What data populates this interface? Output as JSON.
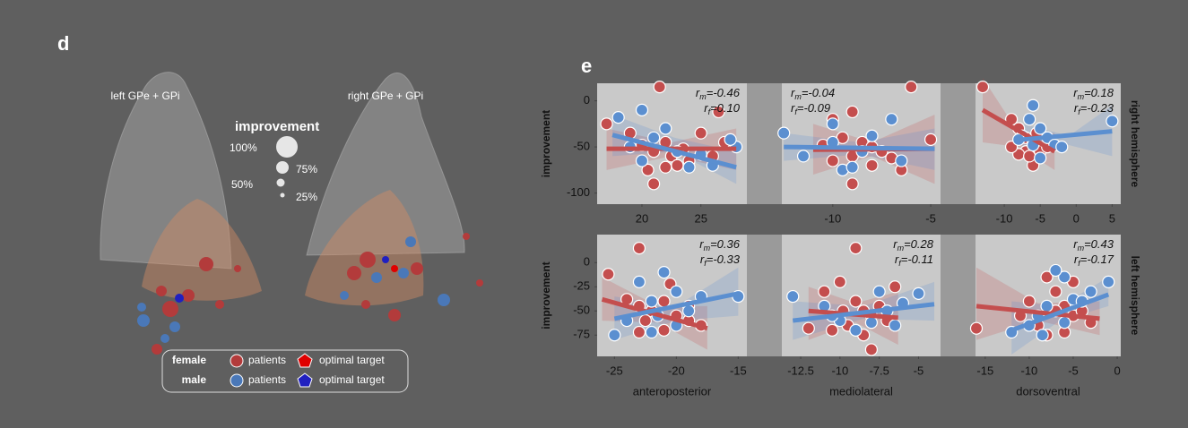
{
  "panel_d": {
    "letter": "d",
    "left_title": "left GPe + GPi",
    "right_title": "right GPe + GPi",
    "size_legend": {
      "title": "improvement",
      "labels": [
        "100%",
        "75%",
        "50%",
        "25%"
      ]
    },
    "legend": {
      "female": "female",
      "male": "male",
      "patients": [
        "patients",
        "patients"
      ],
      "target": [
        "optimal target",
        "optimal target"
      ]
    }
  },
  "panel_e": {
    "letter": "e"
  },
  "chart_data": [
    {
      "type": "scatter",
      "ylabel": "improvement",
      "xlim": [
        16.2,
        28.9
      ],
      "xticks": [
        20,
        25
      ],
      "ylim": [
        -112,
        19
      ],
      "yticks": [
        0,
        -50,
        -100
      ],
      "annotations": [
        {
          "symbol": "r",
          "sub": "m",
          "text": "=-0.46"
        },
        {
          "symbol": "r",
          "sub": "f",
          "text": "=0.10"
        }
      ],
      "series": [
        {
          "color": "#c44e4e",
          "x": [
            21.5,
            17,
            19,
            20,
            21,
            22,
            22.5,
            23,
            21,
            24,
            25,
            26,
            27,
            26.5,
            20.5,
            23.5,
            22
          ],
          "values": [
            15,
            -25,
            -35,
            -48,
            -55,
            -45,
            -60,
            -70,
            -90,
            -65,
            -35,
            -60,
            -45,
            -12,
            -75,
            -52,
            -72
          ],
          "fit": {
            "x": [
              17,
              28
            ],
            "y": [
              -52,
              -52
            ]
          },
          "band": {
            "x": [
              17,
              22.5,
              28
            ],
            "lower": [
              -75,
              -60,
              -75
            ],
            "upper": [
              -30,
              -45,
              -30
            ]
          }
        },
        {
          "color": "#5b8fd0",
          "x": [
            18,
            19,
            20,
            21,
            22,
            23,
            24,
            25,
            26,
            28,
            20,
            27.5
          ],
          "values": [
            -18,
            -50,
            -65,
            -40,
            -30,
            -55,
            -72,
            -58,
            -70,
            -50,
            -10,
            -42
          ],
          "fit": {
            "x": [
              17.5,
              28
            ],
            "y": [
              -37,
              -72
            ]
          },
          "band": {
            "x": [
              17.5,
              22.75,
              28
            ],
            "lower": [
              -60,
              -55,
              -90
            ],
            "upper": [
              -15,
              -40,
              -55
            ]
          }
        }
      ]
    },
    {
      "type": "scatter",
      "xlim": [
        -12.6,
        -4.5
      ],
      "xticks": [
        -10,
        -5
      ],
      "ylim": [
        -112,
        19
      ],
      "annotations": [
        {
          "symbol": "r",
          "sub": "m",
          "text": "=-0.04"
        },
        {
          "symbol": "r",
          "sub": "f",
          "text": "=-0.09"
        }
      ],
      "series": [
        {
          "color": "#c44e4e",
          "x": [
            -9,
            -10,
            -9.5,
            -8.5,
            -8,
            -9,
            -10,
            -8,
            -7.5,
            -7,
            -9,
            -6,
            -5,
            -6.5,
            -10.5
          ],
          "values": [
            -12,
            -20,
            -40,
            -45,
            -50,
            -60,
            -65,
            -70,
            -55,
            -62,
            -90,
            15,
            -42,
            -75,
            -48
          ],
          "fit": {
            "x": [
              -11,
              -4.8
            ],
            "y": [
              -53,
              -52
            ]
          },
          "band": {
            "x": [
              -11,
              -8,
              -4.8
            ],
            "lower": [
              -80,
              -60,
              -90
            ],
            "upper": [
              -25,
              -45,
              -15
            ]
          }
        },
        {
          "color": "#5b8fd0",
          "x": [
            -12.5,
            -11.5,
            -10,
            -9.5,
            -8,
            -7,
            -6.5,
            -8.5,
            -10,
            -9
          ],
          "values": [
            -35,
            -60,
            -45,
            -75,
            -38,
            -20,
            -65,
            -55,
            -25,
            -72
          ],
          "fit": {
            "x": [
              -12.5,
              -4.8
            ],
            "y": [
              -50,
              -52
            ]
          },
          "band": {
            "x": [
              -12.5,
              -8.6,
              -4.8
            ],
            "lower": [
              -65,
              -58,
              -75
            ],
            "upper": [
              -35,
              -45,
              -30
            ]
          }
        }
      ]
    },
    {
      "type": "scatter",
      "side_label": "right hemisphere",
      "xlim": [
        -14,
        6.2
      ],
      "xticks": [
        -10,
        -5,
        0,
        5
      ],
      "ylim": [
        -112,
        19
      ],
      "annotations": [
        {
          "symbol": "r",
          "sub": "m",
          "text": "=0.18"
        },
        {
          "symbol": "r",
          "sub": "f",
          "text": "=-0.23"
        }
      ],
      "series": [
        {
          "color": "#c44e4e",
          "x": [
            -13,
            -9,
            -8,
            -7,
            -6,
            -5,
            -7,
            -8,
            -6,
            -4,
            -5.5,
            -9,
            -6.5
          ],
          "values": [
            15,
            -20,
            -30,
            -40,
            -45,
            -55,
            -55,
            -58,
            -70,
            -50,
            -35,
            -50,
            -60
          ],
          "fit": {
            "x": [
              -13,
              -3
            ],
            "y": [
              -10,
              -55
            ]
          },
          "band": {
            "x": [
              -13,
              -8,
              -3
            ],
            "lower": [
              -45,
              -50,
              -75
            ],
            "upper": [
              25,
              -35,
              -35
            ]
          }
        },
        {
          "color": "#5b8fd0",
          "x": [
            -6,
            -6.5,
            -5,
            -7.5,
            -4,
            -3,
            -2,
            -6,
            5,
            -5,
            -8
          ],
          "values": [
            -5,
            -20,
            -30,
            -38,
            -40,
            -48,
            -50,
            -48,
            -22,
            -62,
            -42
          ],
          "fit": {
            "x": [
              -7.5,
              5
            ],
            "y": [
              -42,
              -33
            ]
          },
          "band": {
            "x": [
              -7.5,
              -1,
              5
            ],
            "lower": [
              -60,
              -48,
              -60
            ],
            "upper": [
              -25,
              -38,
              -5
            ]
          }
        }
      ]
    },
    {
      "type": "scatter",
      "ylabel": "improvement",
      "xlabel": "anteroposterior",
      "xlim": [
        -26.4,
        -14.3
      ],
      "xticks": [
        -25,
        -20,
        -15
      ],
      "ylim": [
        -97,
        29
      ],
      "yticks": [
        0,
        -25,
        -50,
        -75
      ],
      "annotations": [
        {
          "symbol": "r",
          "sub": "m",
          "text": "=0.36"
        },
        {
          "symbol": "r",
          "sub": "f",
          "text": "=-0.33"
        }
      ],
      "series": [
        {
          "color": "#c44e4e",
          "x": [
            -23,
            -25.5,
            -24,
            -23,
            -22,
            -21,
            -20,
            -19,
            -21,
            -23,
            -18,
            -20.5,
            -19,
            -22.5
          ],
          "values": [
            15,
            -12,
            -38,
            -45,
            -50,
            -40,
            -55,
            -60,
            -70,
            -72,
            -65,
            -22,
            -45,
            -60
          ],
          "fit": {
            "x": [
              -26,
              -17.5
            ],
            "y": [
              -38,
              -68
            ]
          },
          "band": {
            "x": [
              -26,
              -21.5,
              -17.5
            ],
            "lower": [
              -60,
              -62,
              -90
            ],
            "upper": [
              -15,
              -45,
              -45
            ]
          }
        },
        {
          "color": "#5b8fd0",
          "x": [
            -25,
            -24,
            -22,
            -21,
            -20,
            -23,
            -19,
            -21.5,
            -18,
            -15,
            -22,
            -20
          ],
          "values": [
            -75,
            -60,
            -40,
            -10,
            -30,
            -20,
            -50,
            -55,
            -35,
            -35,
            -72,
            -65
          ],
          "fit": {
            "x": [
              -25,
              -15
            ],
            "y": [
              -58,
              -32
            ]
          },
          "band": {
            "x": [
              -25,
              -20,
              -15
            ],
            "lower": [
              -80,
              -60,
              -55
            ],
            "upper": [
              -35,
              -45,
              -5
            ]
          }
        }
      ]
    },
    {
      "type": "scatter",
      "xlabel": "mediolateral",
      "xlim": [
        -13.7,
        -3.6
      ],
      "xticks": [
        -12.5,
        -10,
        -7.5,
        -5
      ],
      "ylim": [
        -97,
        29
      ],
      "annotations": [
        {
          "symbol": "r",
          "sub": "m",
          "text": "=0.28"
        },
        {
          "symbol": "r",
          "sub": "f",
          "text": "=-0.11"
        }
      ],
      "series": [
        {
          "color": "#c44e4e",
          "x": [
            -9,
            -10,
            -11,
            -9,
            -8.5,
            -8,
            -9.5,
            -10.5,
            -7.5,
            -7,
            -8.5,
            -8,
            -12,
            -6.5,
            -9.8
          ],
          "values": [
            15,
            -20,
            -30,
            -40,
            -50,
            -55,
            -65,
            -70,
            -45,
            -60,
            -75,
            -90,
            -68,
            -25,
            -50
          ],
          "fit": {
            "x": [
              -12,
              -6.3
            ],
            "y": [
              -50,
              -57
            ]
          },
          "band": {
            "x": [
              -12,
              -9,
              -6.3
            ],
            "lower": [
              -80,
              -62,
              -85
            ],
            "upper": [
              -25,
              -42,
              -30
            ]
          }
        },
        {
          "color": "#5b8fd0",
          "x": [
            -13,
            -11,
            -10,
            -9,
            -7.5,
            -7,
            -6,
            -5,
            -8,
            -10.5,
            -6.5
          ],
          "values": [
            -35,
            -45,
            -60,
            -70,
            -30,
            -50,
            -42,
            -32,
            -62,
            -55,
            -65
          ],
          "fit": {
            "x": [
              -13,
              -4
            ],
            "y": [
              -60,
              -43
            ]
          },
          "band": {
            "x": [
              -13,
              -8.5,
              -4
            ],
            "lower": [
              -80,
              -58,
              -60
            ],
            "upper": [
              -40,
              -45,
              -20
            ]
          }
        }
      ]
    },
    {
      "type": "scatter",
      "xlabel": "dorsoventral",
      "side_label": "left hemisphere",
      "xlim": [
        -16.1,
        0.4
      ],
      "xticks": [
        -15,
        -10,
        -5,
        0
      ],
      "ylim": [
        -97,
        29
      ],
      "annotations": [
        {
          "symbol": "r",
          "sub": "m",
          "text": "=0.43"
        },
        {
          "symbol": "r",
          "sub": "f",
          "text": "=-0.17"
        }
      ],
      "series": [
        {
          "color": "#c44e4e",
          "x": [
            -16,
            -10,
            -8,
            -7,
            -6,
            -5,
            -8,
            -9,
            -4,
            -3,
            -6,
            -11,
            -7,
            -5
          ],
          "values": [
            -68,
            -40,
            -15,
            -30,
            -45,
            -55,
            -75,
            -65,
            -50,
            -62,
            -72,
            -55,
            -50,
            -20
          ],
          "fit": {
            "x": [
              -16,
              -2
            ],
            "y": [
              -45,
              -58
            ]
          },
          "band": {
            "x": [
              -16,
              -9,
              -2
            ],
            "lower": [
              -80,
              -60,
              -75
            ],
            "upper": [
              -5,
              -42,
              -40
            ]
          }
        },
        {
          "color": "#5b8fd0",
          "x": [
            -12,
            -10,
            -9,
            -8,
            -6,
            -5,
            -7,
            -4,
            -1,
            -6,
            -8.5,
            -3
          ],
          "values": [
            -72,
            -65,
            -55,
            -45,
            -15,
            -38,
            -8,
            -40,
            -20,
            -62,
            -75,
            -30
          ],
          "fit": {
            "x": [
              -12,
              -1
            ],
            "y": [
              -70,
              -33
            ]
          },
          "band": {
            "x": [
              -12,
              -6.5,
              -1
            ],
            "lower": [
              -95,
              -60,
              -45
            ],
            "upper": [
              -40,
              -45,
              -15
            ]
          }
        }
      ]
    }
  ]
}
